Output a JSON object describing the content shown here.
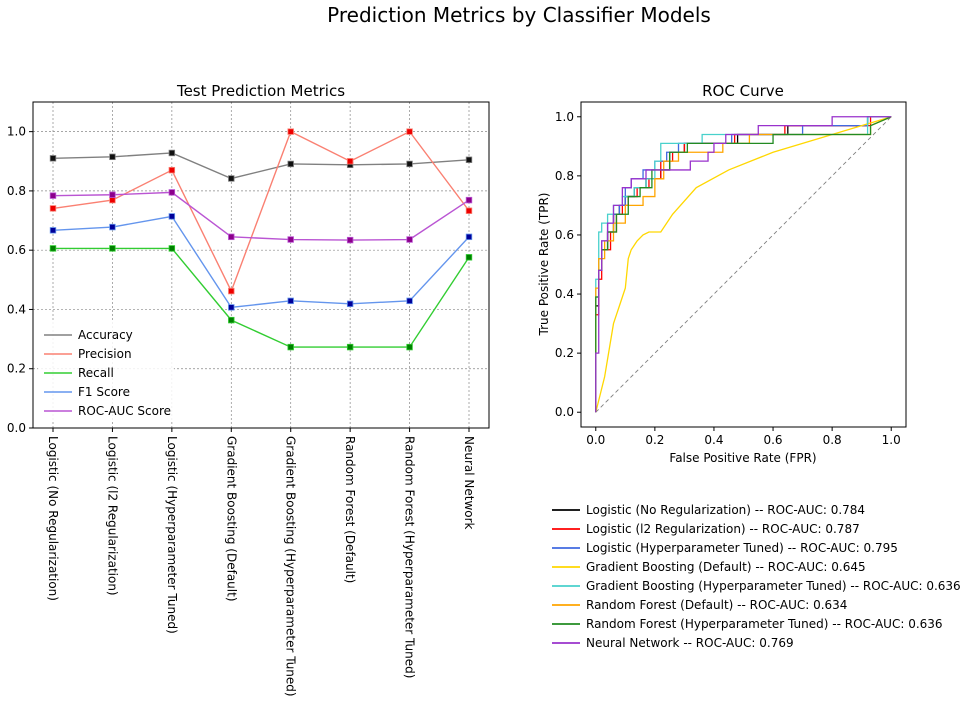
{
  "suptitle": "Prediction Metrics by Classifier Models",
  "chart_data": [
    {
      "type": "line",
      "title": "Test Prediction Metrics",
      "xlabel": "",
      "ylabel": "",
      "ylim": [
        0,
        1.1
      ],
      "y_ticks": [
        0.0,
        0.2,
        0.4,
        0.6,
        0.8,
        1.0
      ],
      "y_tick_labels": [
        "0.0",
        "0.2",
        "0.4",
        "0.6",
        "0.8",
        "1.0"
      ],
      "grid": true,
      "legend_placement": "lower-left",
      "categories": [
        "Logistic (No Regularization)",
        "Logistic (l2 Regularization)",
        "Logistic (Hyperparameter Tuned)",
        "Gradient Boosting (Default)",
        "Gradient Boosting (Hyperparameter Tuned)",
        "Random Forest (Default)",
        "Random Forest (Hyperparameter Tuned)",
        "Neural Network"
      ],
      "series": [
        {
          "name": "Accuracy",
          "color": "#808080",
          "marker_color": "#111111",
          "values": [
            0.91,
            0.915,
            0.928,
            0.842,
            0.891,
            0.888,
            0.891,
            0.905
          ]
        },
        {
          "name": "Precision",
          "color": "#fa8072",
          "marker_color": "#ee0000",
          "values": [
            0.741,
            0.769,
            0.87,
            0.462,
            1.0,
            0.9,
            1.0,
            0.733
          ]
        },
        {
          "name": "Recall",
          "color": "#32cd32",
          "marker_color": "#008000",
          "values": [
            0.606,
            0.606,
            0.606,
            0.364,
            0.273,
            0.273,
            0.273,
            0.576
          ]
        },
        {
          "name": "F1 Score",
          "color": "#6495ed",
          "marker_color": "#000099",
          "values": [
            0.667,
            0.678,
            0.714,
            0.407,
            0.429,
            0.419,
            0.429,
            0.645
          ]
        },
        {
          "name": "ROC-AUC Score",
          "color": "#ba55d3",
          "marker_color": "#8b008b",
          "values": [
            0.784,
            0.787,
            0.795,
            0.645,
            0.636,
            0.634,
            0.636,
            0.769
          ]
        }
      ]
    },
    {
      "type": "line",
      "title": "ROC Curve",
      "xlabel": "False Positive Rate (FPR)",
      "ylabel": "True Positive Rate (TPR)",
      "xlim": [
        -0.05,
        1.05
      ],
      "ylim": [
        -0.05,
        1.05
      ],
      "x_ticks": [
        0.0,
        0.2,
        0.4,
        0.6,
        0.8,
        1.0
      ],
      "x_tick_labels": [
        "0.0",
        "0.2",
        "0.4",
        "0.6",
        "0.8",
        "1.0"
      ],
      "y_ticks": [
        0.0,
        0.2,
        0.4,
        0.6,
        0.8,
        1.0
      ],
      "y_tick_labels": [
        "0.0",
        "0.2",
        "0.4",
        "0.6",
        "0.8",
        "1.0"
      ],
      "grid": false,
      "legend_placement": "below",
      "diagonal": {
        "x": [
          0,
          1
        ],
        "y": [
          0,
          1
        ],
        "color": "#808080",
        "style": "dashed"
      },
      "series": [
        {
          "name": "Logistic (No Regularization) -- ROC-AUC: 0.784",
          "color": "#000000",
          "x": [
            0,
            0,
            0.01,
            0.01,
            0.02,
            0.02,
            0.04,
            0.04,
            0.06,
            0.06,
            0.08,
            0.08,
            0.1,
            0.1,
            0.13,
            0.13,
            0.17,
            0.17,
            0.22,
            0.22,
            0.25,
            0.25,
            0.3,
            0.3,
            0.48,
            0.48,
            0.65,
            0.65,
            0.92,
            0.92,
            1.0
          ],
          "y": [
            0,
            0.36,
            0.36,
            0.48,
            0.48,
            0.55,
            0.55,
            0.61,
            0.61,
            0.67,
            0.67,
            0.7,
            0.7,
            0.73,
            0.73,
            0.76,
            0.76,
            0.79,
            0.79,
            0.82,
            0.82,
            0.88,
            0.88,
            0.91,
            0.91,
            0.94,
            0.94,
            0.97,
            0.97,
            1.0,
            1.0
          ]
        },
        {
          "name": "Logistic (l2 Regularization) -- ROC-AUC: 0.787",
          "color": "#ff0000",
          "x": [
            0,
            0,
            0.01,
            0.01,
            0.02,
            0.02,
            0.05,
            0.05,
            0.07,
            0.07,
            0.09,
            0.09,
            0.11,
            0.11,
            0.14,
            0.14,
            0.18,
            0.18,
            0.22,
            0.22,
            0.26,
            0.26,
            0.3,
            0.3,
            0.47,
            0.47,
            0.64,
            0.64,
            0.93,
            0.93,
            1.0
          ],
          "y": [
            0,
            0.33,
            0.33,
            0.45,
            0.45,
            0.55,
            0.55,
            0.61,
            0.61,
            0.67,
            0.67,
            0.7,
            0.7,
            0.73,
            0.73,
            0.76,
            0.76,
            0.79,
            0.79,
            0.85,
            0.85,
            0.88,
            0.88,
            0.91,
            0.91,
            0.94,
            0.94,
            0.97,
            0.97,
            1.0,
            1.0
          ]
        },
        {
          "name": "Logistic (Hyperparameter Tuned) -- ROC-AUC: 0.795",
          "color": "#4169e1",
          "x": [
            0,
            0,
            0.01,
            0.01,
            0.02,
            0.02,
            0.04,
            0.04,
            0.06,
            0.06,
            0.08,
            0.08,
            0.1,
            0.1,
            0.12,
            0.12,
            0.16,
            0.16,
            0.2,
            0.2,
            0.24,
            0.24,
            0.28,
            0.28,
            0.46,
            0.46,
            0.7,
            0.7,
            0.92,
            0.92,
            1.0
          ],
          "y": [
            0,
            0.39,
            0.39,
            0.52,
            0.52,
            0.58,
            0.58,
            0.64,
            0.64,
            0.67,
            0.67,
            0.7,
            0.7,
            0.76,
            0.76,
            0.79,
            0.79,
            0.82,
            0.82,
            0.85,
            0.85,
            0.88,
            0.88,
            0.91,
            0.91,
            0.94,
            0.94,
            0.97,
            0.97,
            1.0,
            1.0
          ]
        },
        {
          "name": "Gradient Boosting (Default) -- ROC-AUC: 0.645",
          "color": "#ffd700",
          "x": [
            0,
            0.03,
            0.06,
            0.07,
            0.08,
            0.09,
            0.1,
            0.11,
            0.12,
            0.14,
            0.16,
            0.18,
            0.22,
            0.26,
            0.34,
            0.45,
            0.6,
            0.8,
            0.9,
            1.0
          ],
          "y": [
            0,
            0.12,
            0.3,
            0.33,
            0.36,
            0.39,
            0.42,
            0.52,
            0.55,
            0.58,
            0.6,
            0.61,
            0.61,
            0.67,
            0.76,
            0.82,
            0.88,
            0.94,
            0.97,
            1.0
          ]
        },
        {
          "name": "Gradient Boosting (Hyperparameter Tuned) -- ROC-AUC: 0.636",
          "color": "#48d1cc",
          "x": [
            0,
            0,
            0.01,
            0.01,
            0.02,
            0.02,
            0.04,
            0.04,
            0.06,
            0.06,
            0.09,
            0.09,
            0.13,
            0.13,
            0.17,
            0.17,
            0.2,
            0.2,
            0.22,
            0.22,
            0.36,
            0.36,
            0.92,
            0.92,
            1.0
          ],
          "y": [
            0,
            0.45,
            0.45,
            0.61,
            0.61,
            0.64,
            0.64,
            0.67,
            0.67,
            0.7,
            0.7,
            0.73,
            0.73,
            0.76,
            0.76,
            0.79,
            0.79,
            0.85,
            0.85,
            0.91,
            0.91,
            0.94,
            0.94,
            1.0,
            1.0
          ]
        },
        {
          "name": "Random Forest (Default) -- ROC-AUC: 0.634",
          "color": "#ffa500",
          "x": [
            0,
            0,
            0.01,
            0.01,
            0.03,
            0.03,
            0.06,
            0.06,
            0.1,
            0.1,
            0.16,
            0.16,
            0.2,
            0.2,
            0.23,
            0.23,
            0.28,
            0.28,
            0.43,
            0.43,
            0.52,
            0.52,
            0.93,
            0.93,
            1.0
          ],
          "y": [
            0,
            0.42,
            0.42,
            0.52,
            0.52,
            0.58,
            0.58,
            0.64,
            0.64,
            0.7,
            0.7,
            0.73,
            0.73,
            0.79,
            0.79,
            0.85,
            0.85,
            0.88,
            0.88,
            0.91,
            0.91,
            0.94,
            0.94,
            0.97,
            1.0
          ]
        },
        {
          "name": "Random Forest (Hyperparameter Tuned) -- ROC-AUC: 0.636",
          "color": "#228b22",
          "x": [
            0,
            0,
            0.01,
            0.01,
            0.02,
            0.02,
            0.04,
            0.04,
            0.07,
            0.07,
            0.11,
            0.11,
            0.15,
            0.15,
            0.19,
            0.19,
            0.25,
            0.25,
            0.31,
            0.31,
            0.6,
            0.6,
            0.93,
            0.93,
            1.0
          ],
          "y": [
            0,
            0.39,
            0.39,
            0.48,
            0.48,
            0.55,
            0.55,
            0.61,
            0.61,
            0.67,
            0.67,
            0.73,
            0.73,
            0.76,
            0.76,
            0.82,
            0.82,
            0.88,
            0.88,
            0.91,
            0.91,
            0.94,
            0.94,
            0.97,
            1.0
          ]
        },
        {
          "name": "Neural Network -- ROC-AUC: 0.769",
          "color": "#9932cc",
          "x": [
            0,
            0,
            0.01,
            0.01,
            0.02,
            0.02,
            0.04,
            0.04,
            0.06,
            0.06,
            0.09,
            0.09,
            0.12,
            0.12,
            0.17,
            0.17,
            0.32,
            0.32,
            0.38,
            0.38,
            0.4,
            0.4,
            0.44,
            0.44,
            0.55,
            0.55,
            0.8,
            0.8,
            1.0
          ],
          "y": [
            0,
            0.2,
            0.2,
            0.48,
            0.48,
            0.58,
            0.58,
            0.64,
            0.64,
            0.7,
            0.7,
            0.76,
            0.76,
            0.79,
            0.79,
            0.82,
            0.82,
            0.85,
            0.85,
            0.88,
            0.88,
            0.91,
            0.91,
            0.94,
            0.94,
            0.97,
            0.97,
            1.0,
            1.0
          ]
        }
      ]
    }
  ]
}
